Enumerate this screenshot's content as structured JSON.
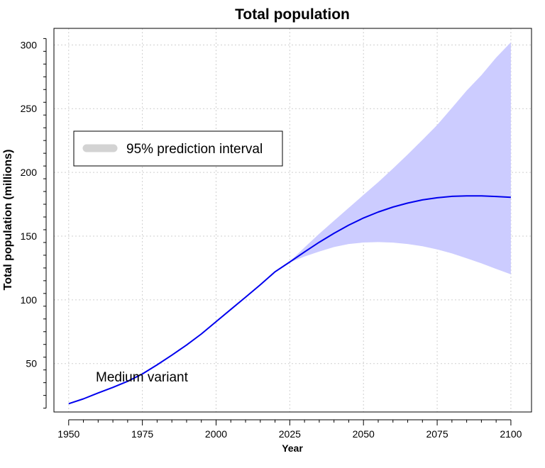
{
  "chart_data": {
    "type": "line",
    "title": "Total population",
    "xlabel": "Year",
    "ylabel": "Total population (millions)",
    "xlim": [
      1945,
      2107
    ],
    "ylim": [
      12,
      313
    ],
    "x_ticks": [
      1950,
      1975,
      2000,
      2025,
      2050,
      2075,
      2100
    ],
    "y_ticks": [
      50,
      100,
      150,
      200,
      250,
      300
    ],
    "grid": true,
    "legend_position": "upper-left",
    "legend": [
      "95% prediction interval"
    ],
    "annotations": [
      "Medium variant"
    ],
    "colors": {
      "median_line": "#0000ee",
      "interval_fill": "#ccccff",
      "legend_swatch": "#d3d3d3"
    },
    "series": [
      {
        "role": "median",
        "x": [
          1950,
          1955,
          1960,
          1965,
          1970,
          1975,
          1980,
          1985,
          1990,
          1995,
          2000,
          2005,
          2010,
          2015,
          2020,
          2025,
          2030,
          2035,
          2040,
          2045,
          2050,
          2055,
          2060,
          2065,
          2070,
          2075,
          2080,
          2085,
          2090,
          2095,
          2100
        ],
        "values": [
          18.5,
          22.3,
          26.9,
          31.3,
          36.1,
          41.8,
          49.0,
          56.6,
          64.5,
          73.2,
          82.9,
          92.5,
          102.1,
          111.8,
          122.0,
          129.7,
          137.6,
          145.2,
          152.2,
          158.6,
          164.2,
          168.9,
          172.8,
          175.9,
          178.4,
          180.1,
          181.2,
          181.6,
          181.6,
          181.1,
          180.4
        ]
      },
      {
        "role": "interval-upper",
        "x": [
          2025,
          2030,
          2035,
          2040,
          2045,
          2050,
          2055,
          2060,
          2065,
          2070,
          2075,
          2080,
          2085,
          2090,
          2095,
          2100
        ],
        "values": [
          130.0,
          141.1,
          151.9,
          162.1,
          172.2,
          182.3,
          192.3,
          203.0,
          214.0,
          225.5,
          237.2,
          250.6,
          264.2,
          276.3,
          290.0,
          302.1
        ]
      },
      {
        "role": "interval-lower",
        "x": [
          2025,
          2030,
          2035,
          2040,
          2045,
          2050,
          2055,
          2060,
          2065,
          2070,
          2075,
          2080,
          2085,
          2090,
          2095,
          2100
        ],
        "values": [
          129.4,
          134.0,
          137.9,
          141.4,
          143.8,
          145.0,
          145.3,
          144.9,
          143.8,
          142.1,
          139.6,
          136.4,
          132.6,
          128.6,
          124.3,
          120.0
        ]
      }
    ]
  }
}
